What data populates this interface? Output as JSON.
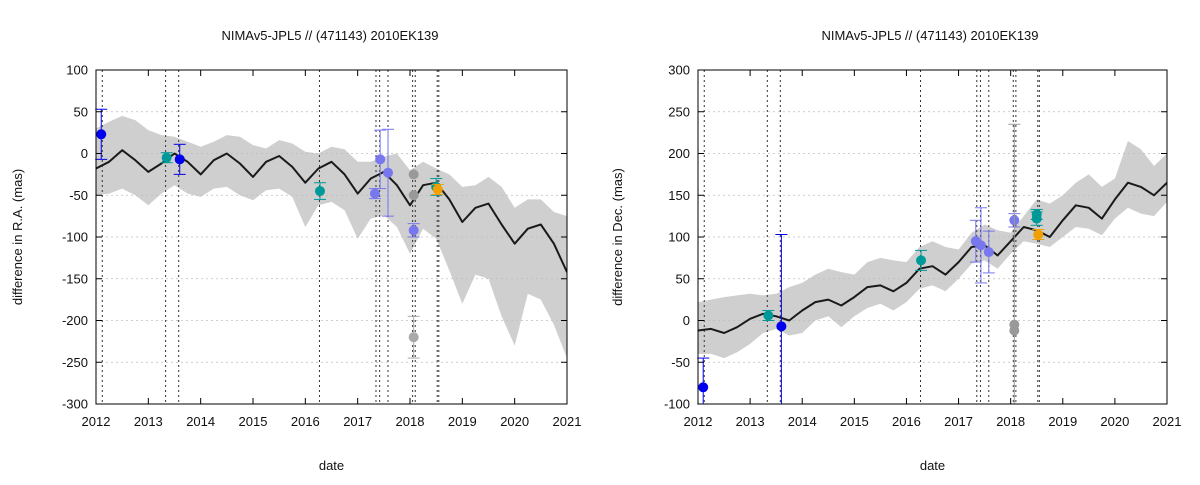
{
  "chart_data": [
    {
      "type": "line",
      "title": "NIMAv5-JPL5 // (471143) 2010EK139",
      "xlabel": "date",
      "ylabel": "difference in R.A. (mas)",
      "xlim": [
        2012,
        2021
      ],
      "ylim": [
        -300,
        100
      ],
      "xticks": [
        2012,
        2013,
        2014,
        2015,
        2016,
        2017,
        2018,
        2019,
        2020,
        2021
      ],
      "yticks": [
        100,
        50,
        0,
        -50,
        -100,
        -150,
        -200,
        -250,
        -300
      ],
      "grid": true,
      "colors": {
        "curve": "#1a1a1a",
        "band": "#cfcfcf",
        "grid": "#bdbdbd",
        "vline": "#333333"
      },
      "vertical_lines": [
        2012.12,
        2013.33,
        2013.58,
        2016.27,
        2017.35,
        2017.42,
        2017.58,
        2018.05,
        2018.1,
        2018.52,
        2018.55
      ],
      "model_curve": {
        "x": [
          2012.0,
          2012.25,
          2012.5,
          2012.75,
          2013.0,
          2013.25,
          2013.5,
          2013.75,
          2014.0,
          2014.25,
          2014.5,
          2014.75,
          2015.0,
          2015.25,
          2015.5,
          2015.75,
          2016.0,
          2016.25,
          2016.5,
          2016.75,
          2017.0,
          2017.25,
          2017.5,
          2017.75,
          2018.0,
          2018.25,
          2018.5,
          2018.75,
          2019.0,
          2019.25,
          2019.5,
          2019.75,
          2020.0,
          2020.25,
          2020.5,
          2020.75,
          2021.0
        ],
        "y": [
          -18,
          -10,
          4,
          -8,
          -22,
          -12,
          0,
          -10,
          -25,
          -8,
          0,
          -12,
          -28,
          -10,
          -3,
          -16,
          -35,
          -18,
          -10,
          -25,
          -48,
          -30,
          -22,
          -38,
          -62,
          -38,
          -35,
          -55,
          -82,
          -65,
          -60,
          -85,
          -108,
          -90,
          -85,
          -108,
          -142
        ]
      },
      "uncertainty_band": {
        "x": [
          2012.0,
          2012.25,
          2012.5,
          2012.75,
          2013.0,
          2013.25,
          2013.5,
          2013.75,
          2014.0,
          2014.25,
          2014.5,
          2014.75,
          2015.0,
          2015.25,
          2015.5,
          2015.75,
          2016.0,
          2016.25,
          2016.5,
          2016.75,
          2017.0,
          2017.25,
          2017.5,
          2017.75,
          2018.0,
          2018.25,
          2018.5,
          2018.75,
          2019.0,
          2019.25,
          2019.5,
          2019.75,
          2020.0,
          2020.25,
          2020.5,
          2020.75,
          2021.0
        ],
        "upper": [
          30,
          38,
          45,
          40,
          28,
          22,
          20,
          14,
          8,
          14,
          22,
          20,
          10,
          6,
          16,
          12,
          2,
          0,
          8,
          5,
          -10,
          -10,
          -4,
          0,
          -20,
          -10,
          -18,
          -25,
          -40,
          -38,
          -28,
          -40,
          -65,
          -55,
          -55,
          -70,
          -75
        ],
        "lower": [
          -50,
          -48,
          -42,
          -50,
          -62,
          -48,
          -38,
          -48,
          -52,
          -42,
          -40,
          -50,
          -56,
          -44,
          -42,
          -52,
          -88,
          -62,
          -58,
          -68,
          -102,
          -78,
          -74,
          -88,
          -120,
          -90,
          -102,
          -140,
          -180,
          -145,
          -150,
          -195,
          -230,
          -168,
          -175,
          -205,
          -245
        ]
      },
      "points": [
        {
          "x": 2012.1,
          "y": 23,
          "err": 30,
          "color": "#0000ee"
        },
        {
          "x": 2013.35,
          "y": -5,
          "err": 6,
          "color": "#009999"
        },
        {
          "x": 2013.6,
          "y": -7,
          "err": 18,
          "color": "#0000ee"
        },
        {
          "x": 2016.28,
          "y": -45,
          "err": 10,
          "color": "#009999"
        },
        {
          "x": 2017.33,
          "y": -48,
          "err": 6,
          "color": "#7777ee"
        },
        {
          "x": 2017.43,
          "y": -7,
          "err": 35,
          "color": "#7777ee"
        },
        {
          "x": 2017.58,
          "y": -23,
          "err": 52,
          "color": "#7777ee"
        },
        {
          "x": 2018.07,
          "y": -92,
          "err": 8,
          "color": "#7777ee"
        },
        {
          "x": 2018.07,
          "y": -25,
          "err": 0,
          "color": "#999999"
        },
        {
          "x": 2018.07,
          "y": -50,
          "err": 0,
          "color": "#999999"
        },
        {
          "x": 2018.07,
          "y": -220,
          "err": 25,
          "color": "#aaaaaa"
        },
        {
          "x": 2018.5,
          "y": -40,
          "err": 10,
          "color": "#009999"
        },
        {
          "x": 2018.53,
          "y": -43,
          "err": 6,
          "color": "#f0a000"
        }
      ]
    },
    {
      "type": "line",
      "title": "NIMAv5-JPL5 // (471143) 2010EK139",
      "xlabel": "date",
      "ylabel": "difference in Dec. (mas)",
      "xlim": [
        2012,
        2021
      ],
      "ylim": [
        -100,
        300
      ],
      "xticks": [
        2012,
        2013,
        2014,
        2015,
        2016,
        2017,
        2018,
        2019,
        2020,
        2021
      ],
      "yticks": [
        300,
        250,
        200,
        150,
        100,
        50,
        0,
        -50,
        -100
      ],
      "grid": true,
      "colors": {
        "curve": "#1a1a1a",
        "band": "#cfcfcf",
        "grid": "#bdbdbd",
        "vline": "#333333"
      },
      "vertical_lines": [
        2012.12,
        2013.33,
        2013.58,
        2016.27,
        2017.35,
        2017.42,
        2017.58,
        2018.05,
        2018.1,
        2018.52,
        2018.55
      ],
      "model_curve": {
        "x": [
          2012.0,
          2012.25,
          2012.5,
          2012.75,
          2013.0,
          2013.25,
          2013.5,
          2013.75,
          2014.0,
          2014.25,
          2014.5,
          2014.75,
          2015.0,
          2015.25,
          2015.5,
          2015.75,
          2016.0,
          2016.25,
          2016.5,
          2016.75,
          2017.0,
          2017.25,
          2017.5,
          2017.75,
          2018.0,
          2018.25,
          2018.5,
          2018.75,
          2019.0,
          2019.25,
          2019.5,
          2019.75,
          2020.0,
          2020.25,
          2020.5,
          2020.75,
          2021.0
        ],
        "y": [
          -12,
          -10,
          -15,
          -8,
          2,
          8,
          5,
          0,
          12,
          22,
          25,
          18,
          28,
          40,
          42,
          35,
          45,
          62,
          65,
          55,
          70,
          88,
          90,
          78,
          95,
          112,
          108,
          100,
          120,
          138,
          135,
          122,
          145,
          165,
          160,
          150,
          165
        ]
      },
      "uncertainty_band": {
        "x": [
          2012.0,
          2012.25,
          2012.5,
          2012.75,
          2013.0,
          2013.25,
          2013.5,
          2013.75,
          2014.0,
          2014.25,
          2014.5,
          2014.75,
          2015.0,
          2015.25,
          2015.5,
          2015.75,
          2016.0,
          2016.25,
          2016.5,
          2016.75,
          2017.0,
          2017.25,
          2017.5,
          2017.75,
          2018.0,
          2018.25,
          2018.5,
          2018.75,
          2019.0,
          2019.25,
          2019.5,
          2019.75,
          2020.0,
          2020.25,
          2020.5,
          2020.75,
          2021.0
        ],
        "upper": [
          22,
          25,
          28,
          30,
          32,
          30,
          32,
          40,
          45,
          55,
          62,
          58,
          55,
          70,
          75,
          72,
          70,
          88,
          95,
          88,
          85,
          105,
          115,
          108,
          105,
          125,
          145,
          140,
          150,
          165,
          175,
          160,
          170,
          215,
          205,
          185,
          200
        ],
        "lower": [
          -40,
          -40,
          -45,
          -38,
          -28,
          -15,
          -10,
          -18,
          -15,
          0,
          5,
          -8,
          5,
          15,
          20,
          12,
          22,
          38,
          42,
          35,
          50,
          68,
          72,
          62,
          80,
          95,
          92,
          88,
          100,
          112,
          110,
          102,
          122,
          135,
          128,
          125,
          142
        ]
      },
      "points": [
        {
          "x": 2012.1,
          "y": -80,
          "err": 35,
          "color": "#0000ee"
        },
        {
          "x": 2013.35,
          "y": 6,
          "err": 6,
          "color": "#009999"
        },
        {
          "x": 2013.6,
          "y": -7,
          "err": 110,
          "color": "#0000ee"
        },
        {
          "x": 2016.28,
          "y": 72,
          "err": 12,
          "color": "#009999"
        },
        {
          "x": 2017.33,
          "y": 95,
          "err": 25,
          "color": "#7777ee"
        },
        {
          "x": 2017.43,
          "y": 90,
          "err": 45,
          "color": "#7777ee"
        },
        {
          "x": 2017.58,
          "y": 82,
          "err": 25,
          "color": "#7777ee"
        },
        {
          "x": 2018.07,
          "y": 120,
          "err": 8,
          "color": "#7777ee"
        },
        {
          "x": 2018.07,
          "y": -5,
          "err": 240,
          "color": "#999999"
        },
        {
          "x": 2018.07,
          "y": -12,
          "err": 0,
          "color": "#999999"
        },
        {
          "x": 2018.5,
          "y": 122,
          "err": 8,
          "color": "#009999"
        },
        {
          "x": 2018.5,
          "y": 127,
          "err": 6,
          "color": "#009999"
        },
        {
          "x": 2018.53,
          "y": 103,
          "err": 6,
          "color": "#f0a000"
        }
      ]
    }
  ]
}
